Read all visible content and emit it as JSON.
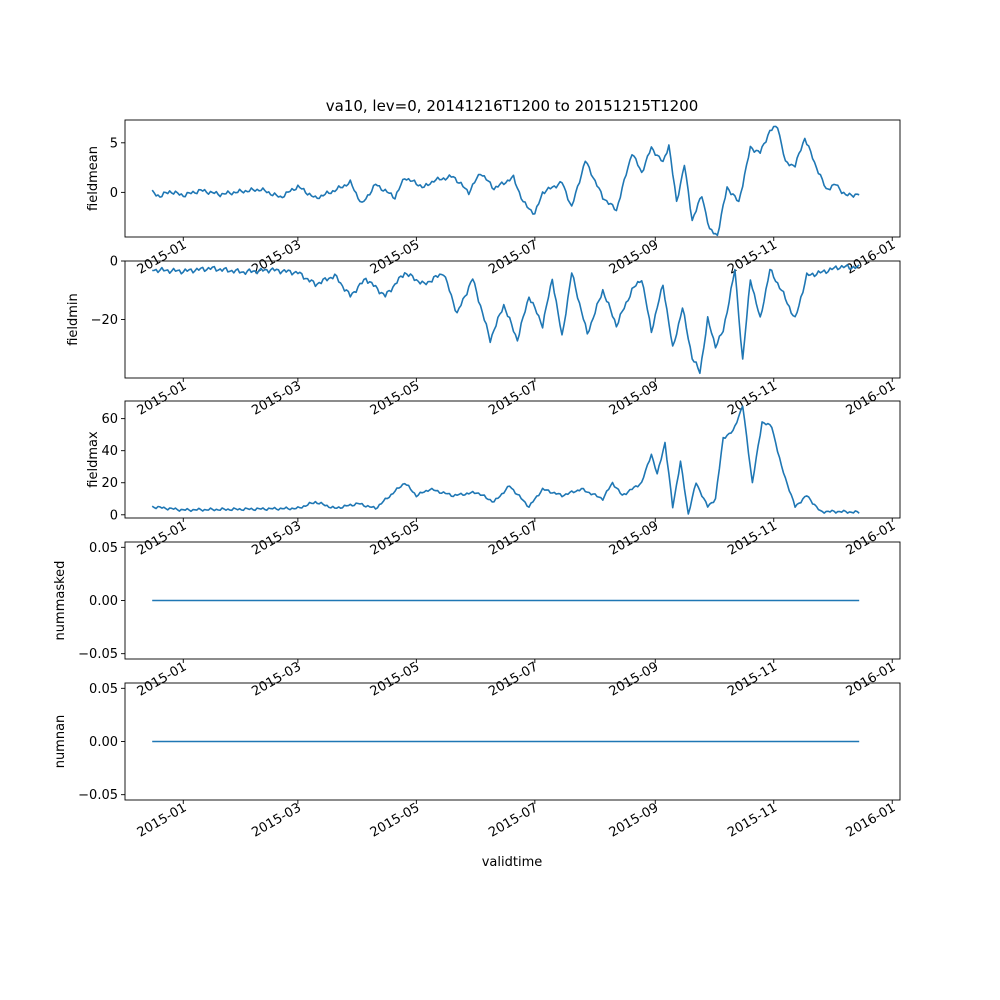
{
  "chart_data": {
    "type": "line",
    "title": "va10, lev=0, 20141216T1200 to 20151215T1200",
    "xlabel": "validtime",
    "x_start": "2014-12-16",
    "x_end": "2015-12-15",
    "xlim": [
      "2014-12-02",
      "2016-01-05"
    ],
    "x_tick_labels": [
      "2015-01",
      "2015-03",
      "2015-05",
      "2015-07",
      "2015-09",
      "2015-11",
      "2016-01"
    ],
    "x_tick_dates": [
      "2015-01-01",
      "2015-03-01",
      "2015-05-01",
      "2015-07-01",
      "2015-09-01",
      "2015-11-01",
      "2016-01-01"
    ],
    "line_color": "#1f77b4",
    "grid": false,
    "legend": "none",
    "subplots": [
      {
        "ylabel": "fieldmean",
        "ylim": [
          -4.5,
          7.3
        ],
        "yticks": [
          0,
          5
        ],
        "ytick_labels": [
          "0",
          "5"
        ],
        "keypoints": [
          [
            "2014-12-16",
            0.0
          ],
          [
            "2014-12-20",
            -0.4
          ],
          [
            "2014-12-25",
            0.1
          ],
          [
            "2015-01-01",
            -0.3
          ],
          [
            "2015-01-10",
            0.2
          ],
          [
            "2015-01-20",
            -0.2
          ],
          [
            "2015-01-31",
            0.1
          ],
          [
            "2015-02-10",
            0.3
          ],
          [
            "2015-02-20",
            -0.5
          ],
          [
            "2015-03-01",
            0.6
          ],
          [
            "2015-03-10",
            -0.6
          ],
          [
            "2015-03-20",
            0.2
          ],
          [
            "2015-03-28",
            1.0
          ],
          [
            "2015-04-03",
            -1.2
          ],
          [
            "2015-04-10",
            0.8
          ],
          [
            "2015-04-20",
            -0.5
          ],
          [
            "2015-04-25",
            1.5
          ],
          [
            "2015-05-05",
            0.5
          ],
          [
            "2015-05-10",
            1.2
          ],
          [
            "2015-05-20",
            1.6
          ],
          [
            "2015-05-28",
            0.0
          ],
          [
            "2015-06-03",
            2.0
          ],
          [
            "2015-06-10",
            0.4
          ],
          [
            "2015-06-20",
            1.5
          ],
          [
            "2015-06-25",
            -1.0
          ],
          [
            "2015-07-01",
            -2.2
          ],
          [
            "2015-07-05",
            0.0
          ],
          [
            "2015-07-15",
            1.0
          ],
          [
            "2015-07-20",
            -1.5
          ],
          [
            "2015-07-27",
            3.2
          ],
          [
            "2015-08-05",
            -0.5
          ],
          [
            "2015-08-12",
            -1.8
          ],
          [
            "2015-08-20",
            4.0
          ],
          [
            "2015-08-25",
            2.0
          ],
          [
            "2015-08-30",
            4.5
          ],
          [
            "2015-09-05",
            3.0
          ],
          [
            "2015-09-08",
            4.8
          ],
          [
            "2015-09-12",
            -1.0
          ],
          [
            "2015-09-16",
            2.8
          ],
          [
            "2015-09-20",
            -2.8
          ],
          [
            "2015-09-25",
            -0.3
          ],
          [
            "2015-09-29",
            -3.8
          ],
          [
            "2015-10-03",
            -4.3
          ],
          [
            "2015-10-08",
            0.5
          ],
          [
            "2015-10-14",
            -1.0
          ],
          [
            "2015-10-20",
            4.5
          ],
          [
            "2015-10-25",
            4.0
          ],
          [
            "2015-10-30",
            6.2
          ],
          [
            "2015-11-03",
            6.7
          ],
          [
            "2015-11-07",
            3.0
          ],
          [
            "2015-11-12",
            2.7
          ],
          [
            "2015-11-17",
            5.5
          ],
          [
            "2015-11-22",
            3.0
          ],
          [
            "2015-11-28",
            0.3
          ],
          [
            "2015-12-03",
            0.8
          ],
          [
            "2015-12-08",
            -0.3
          ],
          [
            "2015-12-15",
            -0.2
          ]
        ]
      },
      {
        "ylabel": "fieldmin",
        "ylim": [
          -40,
          0
        ],
        "yticks": [
          -20,
          0
        ],
        "ytick_labels": [
          "−20",
          "0"
        ],
        "keypoints": [
          [
            "2014-12-16",
            -3.0
          ],
          [
            "2015-01-01",
            -3.5
          ],
          [
            "2015-01-15",
            -2.5
          ],
          [
            "2015-02-01",
            -3.8
          ],
          [
            "2015-02-15",
            -3.0
          ],
          [
            "2015-03-01",
            -4.0
          ],
          [
            "2015-03-10",
            -8.0
          ],
          [
            "2015-03-20",
            -5.0
          ],
          [
            "2015-03-28",
            -12.0
          ],
          [
            "2015-04-05",
            -6.0
          ],
          [
            "2015-04-15",
            -12.0
          ],
          [
            "2015-04-25",
            -4.0
          ],
          [
            "2015-05-05",
            -8.0
          ],
          [
            "2015-05-15",
            -4.0
          ],
          [
            "2015-05-22",
            -18.0
          ],
          [
            "2015-05-30",
            -6.0
          ],
          [
            "2015-06-08",
            -27.0
          ],
          [
            "2015-06-15",
            -15.0
          ],
          [
            "2015-06-22",
            -27.0
          ],
          [
            "2015-06-28",
            -12.0
          ],
          [
            "2015-07-05",
            -22.0
          ],
          [
            "2015-07-10",
            -6.0
          ],
          [
            "2015-07-15",
            -26.0
          ],
          [
            "2015-07-20",
            -4.0
          ],
          [
            "2015-07-28",
            -25.0
          ],
          [
            "2015-08-05",
            -10.0
          ],
          [
            "2015-08-12",
            -22.0
          ],
          [
            "2015-08-20",
            -10.0
          ],
          [
            "2015-08-25",
            -6.0
          ],
          [
            "2015-08-30",
            -24.0
          ],
          [
            "2015-09-05",
            -8.0
          ],
          [
            "2015-09-10",
            -30.0
          ],
          [
            "2015-09-15",
            -16.0
          ],
          [
            "2015-09-20",
            -33.0
          ],
          [
            "2015-09-24",
            -38.0
          ],
          [
            "2015-09-28",
            -20.0
          ],
          [
            "2015-10-02",
            -29.0
          ],
          [
            "2015-10-06",
            -24.0
          ],
          [
            "2015-10-12",
            -3.0
          ],
          [
            "2015-10-16",
            -34.0
          ],
          [
            "2015-10-20",
            -6.0
          ],
          [
            "2015-10-25",
            -20.0
          ],
          [
            "2015-10-30",
            -3.0
          ],
          [
            "2015-11-05",
            -10.0
          ],
          [
            "2015-11-12",
            -20.0
          ],
          [
            "2015-11-18",
            -5.0
          ],
          [
            "2015-11-25",
            -4.0
          ],
          [
            "2015-12-05",
            -2.0
          ],
          [
            "2015-12-15",
            -2.2
          ]
        ]
      },
      {
        "ylabel": "fieldmax",
        "ylim": [
          -2,
          71
        ],
        "yticks": [
          0,
          20,
          40,
          60
        ],
        "ytick_labels": [
          "0",
          "20",
          "40",
          "60"
        ],
        "keypoints": [
          [
            "2014-12-16",
            5.0
          ],
          [
            "2015-01-01",
            3.0
          ],
          [
            "2015-02-01",
            3.5
          ],
          [
            "2015-03-01",
            4.0
          ],
          [
            "2015-03-10",
            8.0
          ],
          [
            "2015-03-20",
            4.0
          ],
          [
            "2015-04-01",
            7.0
          ],
          [
            "2015-04-10",
            4.0
          ],
          [
            "2015-04-25",
            20.0
          ],
          [
            "2015-05-01",
            12.0
          ],
          [
            "2015-05-08",
            16.0
          ],
          [
            "2015-05-20",
            12.0
          ],
          [
            "2015-06-01",
            14.0
          ],
          [
            "2015-06-10",
            8.0
          ],
          [
            "2015-06-18",
            18.0
          ],
          [
            "2015-06-28",
            5.0
          ],
          [
            "2015-07-05",
            16.0
          ],
          [
            "2015-07-15",
            12.0
          ],
          [
            "2015-07-25",
            16.0
          ],
          [
            "2015-08-05",
            10.0
          ],
          [
            "2015-08-10",
            20.0
          ],
          [
            "2015-08-15",
            12.0
          ],
          [
            "2015-08-25",
            20.0
          ],
          [
            "2015-08-30",
            38.0
          ],
          [
            "2015-09-02",
            25.0
          ],
          [
            "2015-09-06",
            45.0
          ],
          [
            "2015-09-10",
            5.0
          ],
          [
            "2015-09-14",
            33.0
          ],
          [
            "2015-09-18",
            0.5
          ],
          [
            "2015-09-22",
            20.0
          ],
          [
            "2015-09-28",
            5.0
          ],
          [
            "2015-10-02",
            10.0
          ],
          [
            "2015-10-06",
            48.0
          ],
          [
            "2015-10-11",
            52.0
          ],
          [
            "2015-10-16",
            68.0
          ],
          [
            "2015-10-21",
            20.0
          ],
          [
            "2015-10-26",
            58.0
          ],
          [
            "2015-10-31",
            55.0
          ],
          [
            "2015-11-05",
            30.0
          ],
          [
            "2015-11-12",
            5.0
          ],
          [
            "2015-11-18",
            12.0
          ],
          [
            "2015-11-25",
            2.0
          ],
          [
            "2015-12-05",
            2.0
          ],
          [
            "2015-12-15",
            1.5
          ]
        ]
      },
      {
        "ylabel": "nummasked",
        "ylim": [
          -0.055,
          0.055
        ],
        "yticks": [
          -0.05,
          0.0,
          0.05
        ],
        "ytick_labels": [
          "−0.05",
          "0.00",
          "0.05"
        ],
        "keypoints": [
          [
            "2014-12-16",
            0.0
          ],
          [
            "2015-12-15",
            0.0
          ]
        ]
      },
      {
        "ylabel": "numnan",
        "ylim": [
          -0.055,
          0.055
        ],
        "yticks": [
          -0.05,
          0.0,
          0.05
        ],
        "ytick_labels": [
          "−0.05",
          "0.00",
          "0.05"
        ],
        "keypoints": [
          [
            "2014-12-16",
            0.0
          ],
          [
            "2015-12-15",
            0.0
          ]
        ]
      }
    ]
  }
}
